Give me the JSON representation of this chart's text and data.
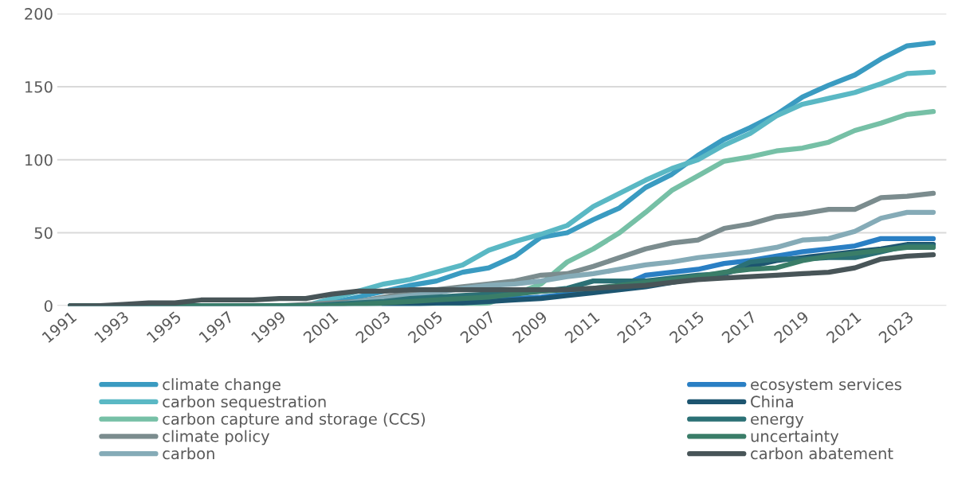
{
  "chart_data": {
    "type": "line",
    "x": [
      1991,
      1992,
      1993,
      1994,
      1995,
      1996,
      1997,
      1998,
      1999,
      2000,
      2001,
      2002,
      2003,
      2004,
      2005,
      2006,
      2007,
      2008,
      2009,
      2010,
      2011,
      2012,
      2013,
      2014,
      2015,
      2016,
      2017,
      2018,
      2019,
      2020,
      2021,
      2022,
      2023,
      2024
    ],
    "xlim": [
      1990.5,
      2024.5
    ],
    "xticks": [
      1991,
      1993,
      1995,
      1997,
      1999,
      2001,
      2003,
      2005,
      2007,
      2009,
      2011,
      2013,
      2015,
      2017,
      2019,
      2021,
      2023
    ],
    "ylim": [
      0,
      200
    ],
    "yticks": [
      0,
      50,
      100,
      150,
      200
    ],
    "grid": "y",
    "legend": "bottom",
    "line_style": "solid",
    "marker": "none",
    "series": [
      {
        "name": "climate change",
        "color": "#3a9bc1",
        "values": [
          null,
          null,
          null,
          null,
          null,
          null,
          null,
          null,
          0,
          0,
          2,
          6,
          10,
          14,
          17,
          23,
          26,
          34,
          47,
          50,
          59,
          67,
          81,
          90,
          103,
          114,
          122,
          131,
          143,
          151,
          158,
          169,
          178,
          180
        ]
      },
      {
        "name": "carbon sequestration",
        "color": "#5ab8c4",
        "values": [
          0,
          0,
          0,
          0,
          0,
          0,
          0,
          0,
          0,
          0,
          5,
          10,
          15,
          18,
          23,
          28,
          38,
          44,
          49,
          55,
          68,
          77,
          86,
          94,
          100,
          110,
          118,
          130,
          138,
          142,
          146,
          152,
          159,
          160
        ]
      },
      {
        "name": "carbon capture and storage (CCS)",
        "color": "#76c0a6",
        "values": [
          0,
          0,
          0,
          0,
          0,
          0,
          0,
          0,
          0,
          0,
          0,
          0,
          0,
          0,
          0,
          0,
          2,
          8,
          15,
          30,
          39,
          50,
          64,
          79,
          89,
          99,
          102,
          106,
          108,
          112,
          120,
          125,
          131,
          133
        ]
      },
      {
        "name": "climate policy",
        "color": "#7b8c8e",
        "values": [
          0,
          0,
          0,
          0,
          0,
          0,
          0,
          0,
          0,
          1,
          2,
          3,
          6,
          9,
          11,
          13,
          15,
          17,
          21,
          22,
          27,
          33,
          39,
          43,
          45,
          53,
          56,
          61,
          63,
          66,
          66,
          74,
          75,
          77
        ]
      },
      {
        "name": "carbon",
        "color": "#85abb7",
        "values": [
          0,
          0,
          0,
          0,
          0,
          0,
          0,
          0,
          0,
          0,
          0,
          3,
          5,
          7,
          9,
          12,
          14,
          15,
          17,
          20,
          22,
          25,
          28,
          30,
          33,
          35,
          37,
          40,
          45,
          46,
          51,
          60,
          64,
          64
        ]
      },
      {
        "name": "ecosystem services",
        "color": "#2a7fc4",
        "values": [
          null,
          null,
          null,
          null,
          null,
          null,
          null,
          null,
          null,
          null,
          null,
          null,
          0,
          1,
          2,
          3,
          4,
          5,
          6,
          8,
          10,
          13,
          21,
          23,
          25,
          29,
          31,
          34,
          37,
          39,
          41,
          46,
          46,
          46
        ]
      },
      {
        "name": "China",
        "color": "#1d5570",
        "values": [
          0,
          0,
          0,
          0,
          0,
          0,
          0,
          0,
          0,
          0,
          0,
          0,
          0,
          1,
          2,
          2,
          3,
          4,
          5,
          7,
          9,
          11,
          13,
          16,
          19,
          22,
          27,
          31,
          33,
          35,
          37,
          39,
          42,
          42
        ]
      },
      {
        "name": "energy",
        "color": "#2b7075",
        "values": [
          0,
          0,
          0,
          0,
          0,
          0,
          0,
          0,
          0,
          0,
          1,
          2,
          3,
          5,
          6,
          7,
          8,
          9,
          10,
          12,
          17,
          17,
          17,
          19,
          21,
          22,
          30,
          32,
          32,
          33,
          33,
          37,
          41,
          41
        ]
      },
      {
        "name": "uncertainty",
        "color": "#3a7d68",
        "values": [
          0,
          0,
          0,
          0,
          0,
          0,
          0,
          0,
          0,
          0,
          0,
          1,
          2,
          3,
          4,
          5,
          6,
          8,
          10,
          11,
          12,
          14,
          16,
          18,
          20,
          23,
          25,
          26,
          31,
          34,
          36,
          38,
          40,
          40
        ]
      },
      {
        "name": "carbon abatement",
        "color": "#485558",
        "values": [
          0,
          0,
          1,
          2,
          2,
          4,
          4,
          4,
          5,
          5,
          8,
          10,
          10,
          11,
          11,
          11,
          11,
          11,
          11,
          11,
          12,
          13,
          14,
          16,
          18,
          19,
          20,
          21,
          22,
          23,
          26,
          32,
          34,
          35
        ]
      }
    ]
  }
}
